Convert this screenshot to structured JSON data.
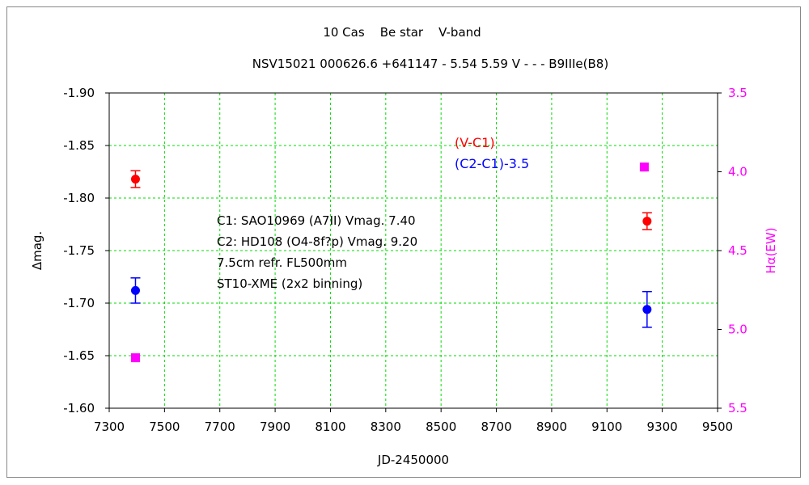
{
  "chart_data": {
    "type": "scatter",
    "title": "10 Cas    Be star    V-band",
    "subtitle": "NSV15021 000626.6 +641147 - 5.54 5.59 V - - - B9IIIe(B8)",
    "xlabel": "JD-2450000",
    "ylabel": "Δmag.",
    "y2label": "Hα(EW)",
    "xlim": [
      7300,
      9500
    ],
    "ylim": [
      -1.9,
      -1.6
    ],
    "y_inverted": true,
    "y2lim": [
      3.5,
      5.5
    ],
    "xticks": [
      "7300",
      "7500",
      "7700",
      "7900",
      "8100",
      "8300",
      "8500",
      "8700",
      "8900",
      "9100",
      "9300",
      "9500"
    ],
    "yticks": [
      "-1.90",
      "-1.85",
      "-1.80",
      "-1.75",
      "-1.70",
      "-1.65",
      "-1.60"
    ],
    "y2ticks": [
      "3.5",
      "4.0",
      "4.5",
      "5.0",
      "5.5"
    ],
    "grid": true,
    "series": [
      {
        "name": "(V-C1)",
        "color": "#ff0000",
        "marker": "circle",
        "axis": "left",
        "points": [
          {
            "x": 7395,
            "y": -1.818,
            "err": 0.008
          },
          {
            "x": 9245,
            "y": -1.778,
            "err": 0.008
          }
        ]
      },
      {
        "name": "(C2-C1)-3.5",
        "color": "#0000ff",
        "marker": "circle",
        "axis": "left",
        "points": [
          {
            "x": 7395,
            "y": -1.712,
            "err": 0.012
          },
          {
            "x": 9245,
            "y": -1.694,
            "err": 0.017
          }
        ]
      },
      {
        "name": "Hα(EW)",
        "color": "#ff00ff",
        "marker": "square",
        "axis": "right",
        "points": [
          {
            "x": 7395,
            "y": 5.18
          },
          {
            "x": 9235,
            "y": 3.97
          }
        ]
      }
    ],
    "annotations": [
      "C1: SAO10969 (A7II) Vmag. 7.40",
      "C2: HD108 (O4-8f?p) Vmag. 9.20",
      "7.5cm refr. FL500mm",
      "ST10-XME (2x2 binning)"
    ],
    "legend": [
      {
        "label": "(V-C1)",
        "color": "#ff0000"
      },
      {
        "label": "(C2-C1)-3.5",
        "color": "#0000ff"
      }
    ],
    "legend_position": "top-right",
    "colors": {
      "grid": "#00dd00",
      "right_axis": "#ff00ff"
    }
  }
}
